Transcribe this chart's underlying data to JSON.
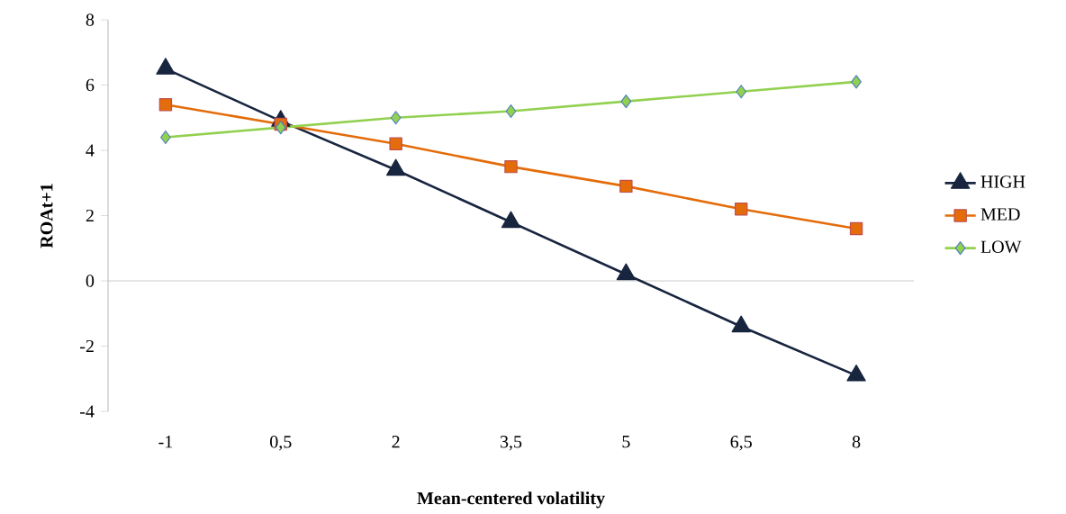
{
  "chart_data": {
    "type": "line",
    "xlabel": "Mean-centered volatility",
    "ylabel": "ROAt+1",
    "categories": [
      "-1",
      "0,5",
      "2",
      "3,5",
      "5",
      "6,5",
      "8"
    ],
    "series": [
      {
        "name": "HIGH",
        "color": "#17253f",
        "marker": "triangle",
        "values": [
          6.5,
          4.9,
          3.4,
          1.8,
          0.2,
          -1.4,
          -2.9
        ]
      },
      {
        "name": "MED",
        "color": "#e46c0a",
        "marker": "square",
        "values": [
          5.4,
          4.8,
          4.2,
          3.5,
          2.9,
          2.2,
          1.6
        ]
      },
      {
        "name": "LOW",
        "color": "#92d050",
        "marker": "diamond",
        "values": [
          4.4,
          4.7,
          5.0,
          5.2,
          5.5,
          5.8,
          6.1
        ]
      }
    ],
    "ylim": [
      -4,
      8
    ],
    "yticks": [
      -4,
      -2,
      0,
      2,
      4,
      6,
      8
    ],
    "grid": false,
    "ref_lines": [
      {
        "axis": "y",
        "value": 0,
        "color": "#bfbfbf"
      }
    ],
    "legend": "right"
  }
}
